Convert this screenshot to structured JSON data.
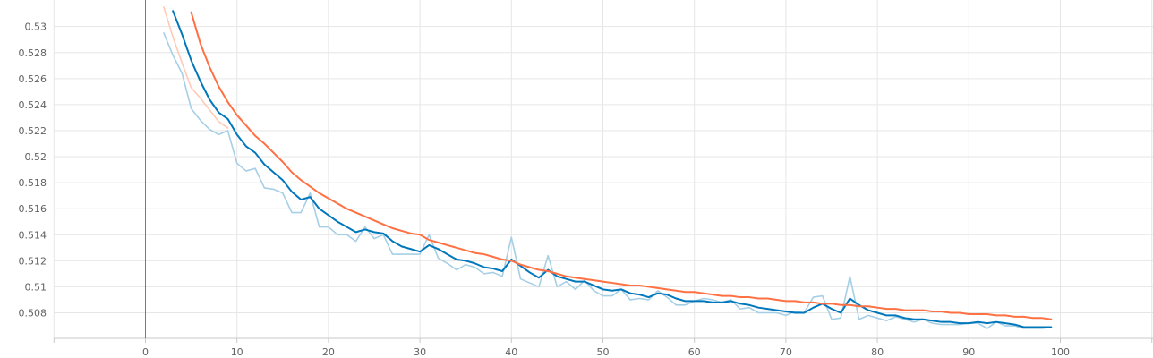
{
  "chart_data": {
    "type": "line",
    "title": "",
    "xlabel": "",
    "ylabel": "",
    "xlim": [
      -10,
      110
    ],
    "ylim": [
      0.5067,
      0.5335
    ],
    "grid": true,
    "x_ticks": [
      0,
      10,
      20,
      30,
      40,
      50,
      60,
      70,
      80,
      90,
      100
    ],
    "y_ticks": [
      0.508,
      0.51,
      0.512,
      0.514,
      0.516,
      0.518,
      0.52,
      0.522,
      0.524,
      0.526,
      0.528,
      0.53
    ],
    "x_tick_labels": [
      "0",
      "10",
      "20",
      "30",
      "40",
      "50",
      "60",
      "70",
      "80",
      "90",
      "100"
    ],
    "y_tick_labels": [
      "0.508",
      "0.51",
      "0.512",
      "0.514",
      "0.516",
      "0.518",
      "0.52",
      "0.522",
      "0.524",
      "0.526",
      "0.528",
      "0.53"
    ],
    "colors": {
      "blue_smoothed": "#0077bb",
      "blue_raw": "#a6cfe6",
      "orange_smoothed": "#ff7043",
      "orange_raw": "#ffc9b5"
    },
    "series": [
      {
        "color_key": "blue_raw",
        "x": [
          2,
          3,
          4,
          5,
          6,
          7,
          8,
          9,
          10,
          11,
          12,
          13,
          14,
          15,
          16,
          17,
          18,
          19,
          20,
          21,
          22,
          23,
          24,
          25,
          26,
          27,
          28,
          29,
          30,
          31,
          32,
          33,
          34,
          35,
          36,
          37,
          38,
          39,
          40,
          41,
          42,
          43,
          44,
          45,
          46,
          47,
          48,
          49,
          50,
          51,
          52,
          53,
          54,
          55,
          56,
          57,
          58,
          59,
          60,
          61,
          62,
          63,
          64,
          65,
          66,
          67,
          68,
          69,
          70,
          71,
          72,
          73,
          74,
          75,
          76,
          77,
          78,
          79,
          80,
          81,
          82,
          83,
          84,
          85,
          86,
          87,
          88,
          89,
          90,
          91,
          92,
          93,
          94,
          95,
          96,
          97,
          98,
          99
        ],
        "y": [
          0.5295,
          0.5278,
          0.5264,
          0.5237,
          0.5228,
          0.5221,
          0.5217,
          0.522,
          0.5195,
          0.5189,
          0.5191,
          0.5176,
          0.5175,
          0.5172,
          0.5157,
          0.5157,
          0.5172,
          0.5146,
          0.5146,
          0.514,
          0.514,
          0.5135,
          0.5146,
          0.5137,
          0.514,
          0.5125,
          0.5125,
          0.5125,
          0.5125,
          0.514,
          0.5122,
          0.5118,
          0.5113,
          0.5117,
          0.5115,
          0.511,
          0.5111,
          0.5108,
          0.5138,
          0.5106,
          0.5103,
          0.51,
          0.5124,
          0.51,
          0.5104,
          0.5098,
          0.5105,
          0.5097,
          0.5093,
          0.5093,
          0.5098,
          0.509,
          0.5091,
          0.509,
          0.5097,
          0.5092,
          0.5086,
          0.5086,
          0.5089,
          0.5091,
          0.509,
          0.5088,
          0.509,
          0.5083,
          0.5084,
          0.508,
          0.508,
          0.508,
          0.5078,
          0.5081,
          0.508,
          0.5092,
          0.5093,
          0.5075,
          0.5076,
          0.5108,
          0.5075,
          0.5078,
          0.5076,
          0.5074,
          0.5077,
          0.5075,
          0.5073,
          0.5075,
          0.5072,
          0.5071,
          0.5071,
          0.5071,
          0.5072,
          0.5072,
          0.5068,
          0.5073,
          0.507,
          0.507,
          0.5068,
          0.5068,
          0.5068,
          0.5069
        ]
      },
      {
        "color_key": "orange_raw",
        "x": [
          2,
          3,
          4,
          5,
          6,
          7,
          8,
          9
        ],
        "y": [
          0.5315,
          0.5292,
          0.5272,
          0.5253,
          0.5245,
          0.5236,
          0.5227,
          0.5222
        ]
      },
      {
        "color_key": "blue_smoothed",
        "x": [
          3,
          4,
          5,
          6,
          7,
          8,
          9,
          10,
          11,
          12,
          13,
          14,
          15,
          16,
          17,
          18,
          19,
          20,
          21,
          22,
          23,
          24,
          25,
          26,
          27,
          28,
          29,
          30,
          31,
          32,
          33,
          34,
          35,
          36,
          37,
          38,
          39,
          40,
          41,
          42,
          43,
          44,
          45,
          46,
          47,
          48,
          49,
          50,
          51,
          52,
          53,
          54,
          55,
          56,
          57,
          58,
          59,
          60,
          61,
          62,
          63,
          64,
          65,
          66,
          67,
          68,
          69,
          70,
          71,
          72,
          73,
          74,
          75,
          76,
          77,
          78,
          79,
          80,
          81,
          82,
          83,
          84,
          85,
          86,
          87,
          88,
          89,
          90,
          91,
          92,
          93,
          94,
          95,
          96,
          97,
          98,
          99
        ],
        "y": [
          0.5312,
          0.5294,
          0.5274,
          0.5258,
          0.5244,
          0.5234,
          0.5229,
          0.5217,
          0.5208,
          0.5203,
          0.5194,
          0.5188,
          0.5182,
          0.5173,
          0.5167,
          0.5169,
          0.516,
          0.5155,
          0.515,
          0.5146,
          0.5142,
          0.5144,
          0.5142,
          0.5141,
          0.5135,
          0.5131,
          0.5129,
          0.5127,
          0.5132,
          0.5129,
          0.5125,
          0.5121,
          0.512,
          0.5118,
          0.5115,
          0.5114,
          0.5112,
          0.5121,
          0.5116,
          0.5111,
          0.5107,
          0.5113,
          0.5108,
          0.5106,
          0.5104,
          0.5104,
          0.5101,
          0.5098,
          0.5097,
          0.5098,
          0.5095,
          0.5094,
          0.5092,
          0.5095,
          0.5094,
          0.5091,
          0.5089,
          0.5089,
          0.5089,
          0.5088,
          0.5088,
          0.5089,
          0.5087,
          0.5086,
          0.5084,
          0.5083,
          0.5082,
          0.5081,
          0.508,
          0.508,
          0.5084,
          0.5087,
          0.5083,
          0.508,
          0.5091,
          0.5086,
          0.5082,
          0.508,
          0.5078,
          0.5078,
          0.5076,
          0.5075,
          0.5075,
          0.5074,
          0.5073,
          0.5073,
          0.5072,
          0.5072,
          0.5073,
          0.5072,
          0.5073,
          0.5072,
          0.5071,
          0.5069,
          0.5069,
          0.5069,
          0.5069
        ]
      },
      {
        "color_key": "orange_smoothed",
        "x": [
          5,
          6,
          7,
          8,
          9,
          10,
          11,
          12,
          13,
          14,
          15,
          16,
          17,
          18,
          19,
          20,
          21,
          22,
          23,
          24,
          25,
          26,
          27,
          28,
          29,
          30,
          31,
          32,
          33,
          34,
          35,
          36,
          37,
          38,
          39,
          40,
          41,
          42,
          43,
          44,
          45,
          46,
          47,
          48,
          49,
          50,
          51,
          52,
          53,
          54,
          55,
          56,
          57,
          58,
          59,
          60,
          61,
          62,
          63,
          64,
          65,
          66,
          67,
          68,
          69,
          70,
          71,
          72,
          73,
          74,
          75,
          76,
          77,
          78,
          79,
          80,
          81,
          82,
          83,
          84,
          85,
          86,
          87,
          88,
          89,
          90,
          91,
          92,
          93,
          94,
          95,
          96,
          97,
          98,
          99
        ],
        "y": [
          0.5311,
          0.5287,
          0.5269,
          0.5254,
          0.5242,
          0.5232,
          0.5224,
          0.5216,
          0.521,
          0.5203,
          0.5196,
          0.5188,
          0.5182,
          0.5177,
          0.5172,
          0.5168,
          0.5164,
          0.516,
          0.5157,
          0.5154,
          0.5151,
          0.5148,
          0.5145,
          0.5143,
          0.5141,
          0.514,
          0.5136,
          0.5134,
          0.5132,
          0.513,
          0.5128,
          0.5126,
          0.5125,
          0.5123,
          0.5121,
          0.512,
          0.5117,
          0.5115,
          0.5113,
          0.5112,
          0.511,
          0.5108,
          0.5107,
          0.5106,
          0.5105,
          0.5104,
          0.5103,
          0.5102,
          0.5101,
          0.5101,
          0.51,
          0.5099,
          0.5098,
          0.5097,
          0.5096,
          0.5096,
          0.5095,
          0.5094,
          0.5093,
          0.5093,
          0.5092,
          0.5092,
          0.5091,
          0.5091,
          0.509,
          0.5089,
          0.5089,
          0.5088,
          0.5088,
          0.5087,
          0.5087,
          0.5086,
          0.5086,
          0.5085,
          0.5085,
          0.5084,
          0.5083,
          0.5083,
          0.5082,
          0.5082,
          0.5082,
          0.5081,
          0.5081,
          0.508,
          0.508,
          0.5079,
          0.5079,
          0.5079,
          0.5078,
          0.5078,
          0.5077,
          0.5077,
          0.5076,
          0.5076,
          0.5075
        ]
      }
    ]
  }
}
